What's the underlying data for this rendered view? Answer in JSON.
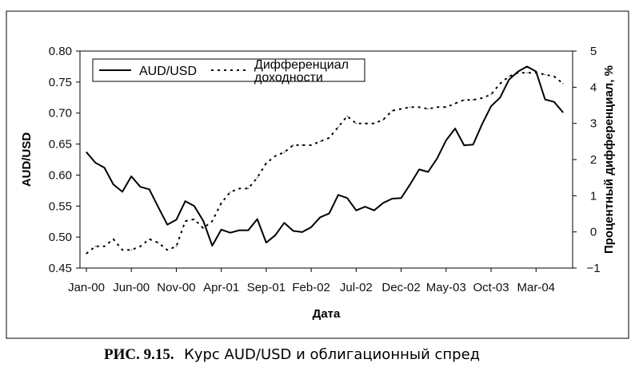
{
  "caption": {
    "number": "РИС. 9.15.",
    "text": "Курс AUD/USD и облигационный спред"
  },
  "chart_data": {
    "type": "line",
    "title": "",
    "xlabel": "Дата",
    "ylabel": "AUD/USD",
    "ylabel_right": "Процентный дифференциал, %",
    "x_tick_labels": [
      "Jan-00",
      "Jun-00",
      "Nov-00",
      "Apr-01",
      "Sep-01",
      "Feb-02",
      "Jul-02",
      "Dec-02",
      "May-03",
      "Oct-03",
      "Mar-04"
    ],
    "ylim": [
      0.45,
      0.8
    ],
    "yticks": [
      "0.45",
      "0.50",
      "0.55",
      "0.60",
      "0.65",
      "0.70",
      "0.75",
      "0.80"
    ],
    "ylim_right": [
      -1,
      5
    ],
    "yticks_right": [
      "−1",
      "0",
      "1",
      "2",
      "3",
      "4",
      "5"
    ],
    "legend_position": "top",
    "grid": false,
    "series": [
      {
        "name": "AUD/USD",
        "axis": "left",
        "style": "solid",
        "values": [
          0.637,
          0.62,
          0.612,
          0.585,
          0.573,
          0.598,
          0.581,
          0.577,
          0.548,
          0.52,
          0.528,
          0.558,
          0.55,
          0.526,
          0.486,
          0.512,
          0.507,
          0.511,
          0.511,
          0.529,
          0.491,
          0.503,
          0.523,
          0.51,
          0.508,
          0.516,
          0.532,
          0.538,
          0.568,
          0.563,
          0.543,
          0.549,
          0.543,
          0.555,
          0.562,
          0.563,
          0.585,
          0.609,
          0.605,
          0.627,
          0.656,
          0.675,
          0.648,
          0.649,
          0.682,
          0.711,
          0.725,
          0.754,
          0.767,
          0.775,
          0.767,
          0.722,
          0.718,
          0.701
        ]
      },
      {
        "name": "Дифференциал доходности",
        "axis": "right",
        "style": "dotted",
        "values": [
          -0.6,
          -0.4,
          -0.4,
          -0.2,
          -0.5,
          -0.5,
          -0.4,
          -0.2,
          -0.3,
          -0.5,
          -0.4,
          0.3,
          0.35,
          0.1,
          0.3,
          0.8,
          1.1,
          1.2,
          1.2,
          1.5,
          1.9,
          2.1,
          2.2,
          2.4,
          2.4,
          2.4,
          2.5,
          2.6,
          2.9,
          3.2,
          3.0,
          3.0,
          3.0,
          3.1,
          3.35,
          3.4,
          3.45,
          3.45,
          3.4,
          3.45,
          3.45,
          3.55,
          3.65,
          3.65,
          3.7,
          3.8,
          4.1,
          4.3,
          4.4,
          4.4,
          4.4,
          4.35,
          4.3,
          4.1
        ]
      }
    ]
  }
}
